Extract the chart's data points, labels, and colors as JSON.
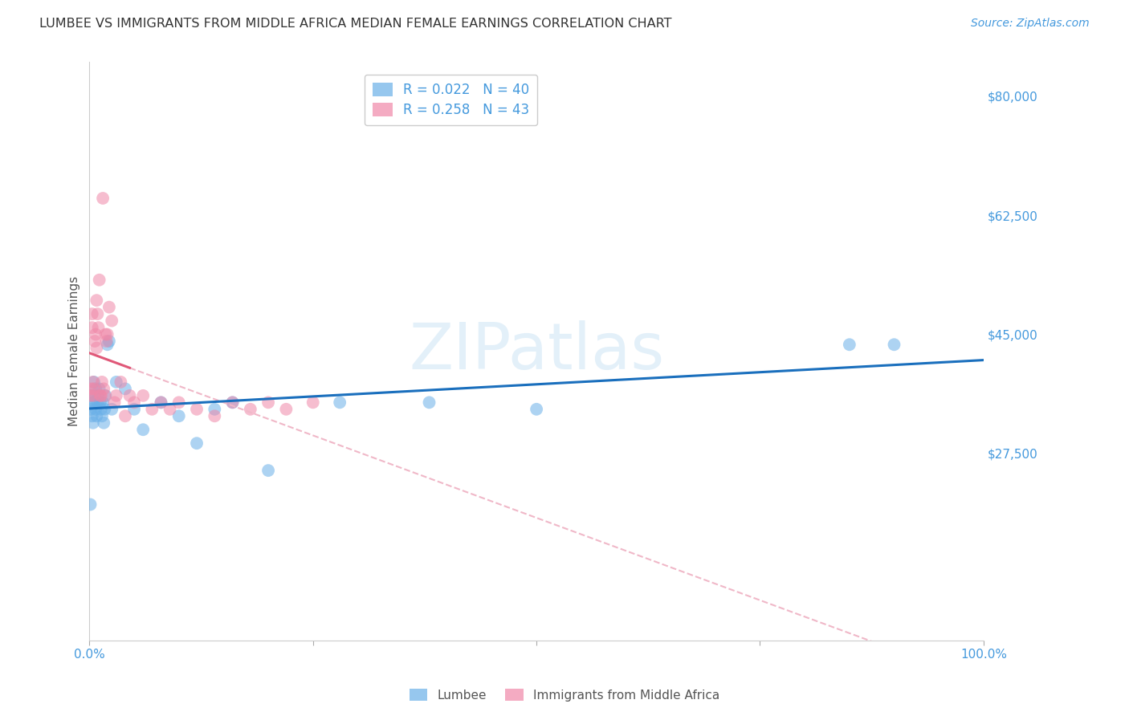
{
  "title": "LUMBEE VS IMMIGRANTS FROM MIDDLE AFRICA MEDIAN FEMALE EARNINGS CORRELATION CHART",
  "source": "Source: ZipAtlas.com",
  "ylabel": "Median Female Earnings",
  "watermark": "ZIPatlas",
  "lumbee_color": "#6ab0e8",
  "immigrants_color": "#f088a8",
  "lumbee_line_color": "#1a6fbd",
  "immigrants_line_color": "#e05878",
  "immigrants_dashed_color": "#f0b8c8",
  "ytick_vals": [
    27500,
    45000,
    62500,
    80000
  ],
  "ytick_labels": [
    "$27,500",
    "$45,000",
    "$62,500",
    "$80,000"
  ],
  "ylim": [
    0,
    85000
  ],
  "xlim": [
    0,
    1.0
  ],
  "background_color": "#ffffff",
  "grid_color": "#dddddd",
  "title_color": "#333333",
  "blue_color": "#4499dd",
  "lumbee_x": [
    0.001,
    0.002,
    0.002,
    0.003,
    0.003,
    0.004,
    0.005,
    0.005,
    0.006,
    0.007,
    0.007,
    0.008,
    0.009,
    0.01,
    0.011,
    0.012,
    0.013,
    0.014,
    0.015,
    0.016,
    0.017,
    0.018,
    0.02,
    0.022,
    0.025,
    0.03,
    0.04,
    0.05,
    0.06,
    0.08,
    0.1,
    0.12,
    0.14,
    0.16,
    0.2,
    0.28,
    0.38,
    0.5,
    0.85,
    0.9
  ],
  "lumbee_y": [
    20000,
    34000,
    36000,
    33000,
    35000,
    32000,
    35000,
    38000,
    36000,
    34000,
    37000,
    33000,
    35000,
    36000,
    37000,
    35000,
    34000,
    33000,
    35000,
    32000,
    34000,
    36000,
    43500,
    44000,
    34000,
    38000,
    37000,
    34000,
    31000,
    35000,
    33000,
    29000,
    34000,
    35000,
    25000,
    35000,
    35000,
    34000,
    43500,
    43500
  ],
  "immigrants_x": [
    0.001,
    0.002,
    0.003,
    0.003,
    0.004,
    0.005,
    0.005,
    0.006,
    0.007,
    0.008,
    0.008,
    0.009,
    0.01,
    0.011,
    0.012,
    0.013,
    0.014,
    0.015,
    0.016,
    0.017,
    0.018,
    0.019,
    0.02,
    0.022,
    0.025,
    0.028,
    0.03,
    0.035,
    0.04,
    0.045,
    0.05,
    0.06,
    0.07,
    0.08,
    0.09,
    0.1,
    0.12,
    0.14,
    0.16,
    0.18,
    0.2,
    0.22,
    0.25
  ],
  "immigrants_y": [
    36000,
    37000,
    46000,
    48000,
    38000,
    36000,
    37000,
    44000,
    45000,
    43000,
    50000,
    48000,
    46000,
    53000,
    36000,
    36000,
    38000,
    65000,
    37000,
    36000,
    45000,
    44000,
    45000,
    49000,
    47000,
    35000,
    36000,
    38000,
    33000,
    36000,
    35000,
    36000,
    34000,
    35000,
    34000,
    35000,
    34000,
    33000,
    35000,
    34000,
    35000,
    34000,
    35000
  ]
}
